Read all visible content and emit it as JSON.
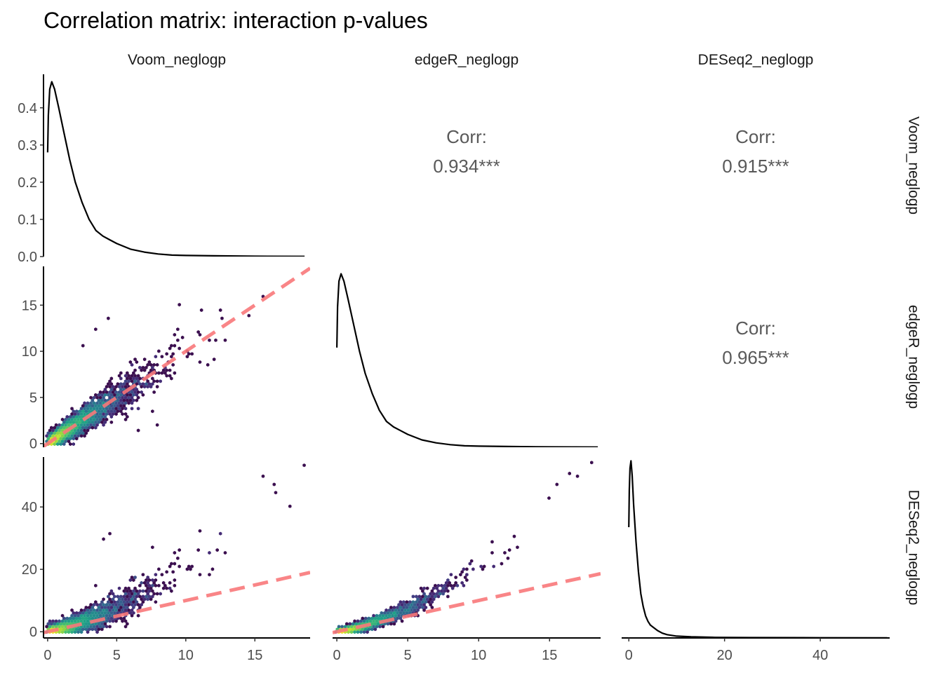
{
  "title": "Correlation matrix: interaction p-values",
  "variables": [
    "Voom_neglogp",
    "edgeR_neglogp",
    "DESeq2_neglogp"
  ],
  "colors": {
    "density_line": "#000000",
    "reference_line": "#f8787a",
    "hex_palette": [
      "#3b0f4f",
      "#46327e",
      "#365c8d",
      "#277f8e",
      "#1fa187",
      "#4ac16d",
      "#a0da39",
      "#fde725"
    ],
    "corr_text": "#595959",
    "axis": "#000000"
  },
  "chart_data": {
    "type": "scatter",
    "subtype": "pairs-matrix",
    "title": "Correlation matrix: interaction p-values",
    "grid": false,
    "panels": [
      {
        "row": 0,
        "col": 0,
        "kind": "density",
        "variable": "Voom_neglogp",
        "xlim": [
          -0.3,
          19
        ],
        "ylim": [
          0,
          0.49
        ],
        "y_ticks": [
          0.0,
          0.1,
          0.2,
          0.3,
          0.4
        ],
        "y_tick_labels": [
          "0.0",
          "0.1",
          "0.2",
          "0.3",
          "0.4"
        ],
        "curve": [
          [
            0.0,
            0.28
          ],
          [
            0.05,
            0.38
          ],
          [
            0.15,
            0.45
          ],
          [
            0.3,
            0.47
          ],
          [
            0.5,
            0.45
          ],
          [
            0.8,
            0.4
          ],
          [
            1.2,
            0.33
          ],
          [
            1.6,
            0.26
          ],
          [
            2.0,
            0.2
          ],
          [
            2.5,
            0.145
          ],
          [
            3.0,
            0.1
          ],
          [
            3.5,
            0.07
          ],
          [
            4.0,
            0.055
          ],
          [
            4.5,
            0.045
          ],
          [
            5.0,
            0.035
          ],
          [
            6.0,
            0.02
          ],
          [
            7.0,
            0.012
          ],
          [
            8.0,
            0.007
          ],
          [
            9.0,
            0.004
          ],
          [
            10.0,
            0.003
          ],
          [
            12.0,
            0.002
          ],
          [
            15.0,
            0.001
          ],
          [
            18.6,
            0.0005
          ]
        ]
      },
      {
        "row": 0,
        "col": 1,
        "kind": "corr",
        "label": "Corr:",
        "value": "0.934***"
      },
      {
        "row": 0,
        "col": 2,
        "kind": "corr",
        "label": "Corr:",
        "value": "0.915***"
      },
      {
        "row": 1,
        "col": 0,
        "kind": "hexbin",
        "x_var": "Voom_neglogp",
        "y_var": "edgeR_neglogp",
        "xlim": [
          -0.3,
          19
        ],
        "ylim": [
          -0.4,
          19.2
        ],
        "y_ticks": [
          0,
          5,
          10,
          15
        ],
        "y_tick_labels": [
          "0",
          "5",
          "10",
          "15"
        ],
        "reference_line": {
          "slope": 1,
          "intercept": 0
        },
        "relationship": {
          "type": "linear",
          "slope": 1.0,
          "exponent": 1.0,
          "spread": 0.9
        },
        "outliers": [
          [
            4.5,
            13.5
          ],
          [
            3.5,
            12.5
          ],
          [
            2.5,
            10.5
          ],
          [
            9.5,
            15.0
          ],
          [
            12.5,
            14.5
          ],
          [
            14.5,
            14.0
          ],
          [
            15.5,
            16.0
          ],
          [
            7.5,
            3.5
          ],
          [
            8.0,
            2.0
          ],
          [
            6.5,
            1.5
          ]
        ]
      },
      {
        "row": 1,
        "col": 1,
        "kind": "density",
        "variable": "edgeR_neglogp",
        "xlim": [
          -0.3,
          18.6
        ],
        "ylim": [
          0,
          0.49
        ],
        "curve": [
          [
            0.0,
            0.27
          ],
          [
            0.05,
            0.38
          ],
          [
            0.15,
            0.45
          ],
          [
            0.3,
            0.47
          ],
          [
            0.5,
            0.45
          ],
          [
            0.8,
            0.4
          ],
          [
            1.2,
            0.33
          ],
          [
            1.6,
            0.26
          ],
          [
            2.0,
            0.2
          ],
          [
            2.5,
            0.145
          ],
          [
            3.0,
            0.1
          ],
          [
            3.5,
            0.07
          ],
          [
            4.0,
            0.055
          ],
          [
            4.5,
            0.045
          ],
          [
            5.0,
            0.035
          ],
          [
            6.0,
            0.02
          ],
          [
            7.0,
            0.012
          ],
          [
            8.0,
            0.007
          ],
          [
            9.0,
            0.004
          ],
          [
            10.0,
            0.003
          ],
          [
            12.0,
            0.002
          ],
          [
            15.0,
            0.001
          ],
          [
            18.4,
            0.0005
          ]
        ]
      },
      {
        "row": 1,
        "col": 2,
        "kind": "corr",
        "label": "Corr:",
        "value": "0.965***"
      },
      {
        "row": 2,
        "col": 0,
        "kind": "hexbin",
        "x_var": "Voom_neglogp",
        "y_var": "DESeq2_neglogp",
        "xlim": [
          -0.3,
          19
        ],
        "ylim": [
          -2,
          56
        ],
        "x_ticks": [
          0,
          5,
          10,
          15
        ],
        "x_tick_labels": [
          "0",
          "5",
          "10",
          "15"
        ],
        "y_ticks": [
          0,
          20,
          40
        ],
        "y_tick_labels": [
          "0",
          "20",
          "40"
        ],
        "reference_line": {
          "slope": 1,
          "intercept": 0
        },
        "relationship": {
          "type": "power",
          "scale": 0.8,
          "exponent": 1.42,
          "spread": 2.2
        },
        "outliers": [
          [
            4.0,
            30.0
          ],
          [
            4.5,
            31.5
          ],
          [
            7.5,
            27.0
          ],
          [
            3.5,
            15.0
          ],
          [
            18.5,
            53.5
          ],
          [
            15.5,
            49.5
          ],
          [
            16.5,
            47.5
          ],
          [
            17.5,
            40.0
          ],
          [
            16.5,
            45.0
          ]
        ]
      },
      {
        "row": 2,
        "col": 1,
        "kind": "hexbin",
        "x_var": "edgeR_neglogp",
        "y_var": "DESeq2_neglogp",
        "xlim": [
          -0.3,
          18.6
        ],
        "ylim": [
          -2,
          56
        ],
        "x_ticks": [
          0,
          5,
          10,
          15
        ],
        "x_tick_labels": [
          "0",
          "5",
          "10",
          "15"
        ],
        "reference_line": {
          "slope": 1,
          "intercept": 0
        },
        "relationship": {
          "type": "power",
          "scale": 0.72,
          "exponent": 1.46,
          "spread": 1.2
        },
        "outliers": [
          [
            18.0,
            54.5
          ],
          [
            16.5,
            50.5
          ],
          [
            17.0,
            49.5
          ],
          [
            15.5,
            47.5
          ],
          [
            15.0,
            43.0
          ]
        ]
      },
      {
        "row": 2,
        "col": 2,
        "kind": "density",
        "variable": "DESeq2_neglogp",
        "xlim": [
          -1.5,
          54.5
        ],
        "ylim": [
          0,
          0.49
        ],
        "x_ticks": [
          0,
          20,
          40
        ],
        "x_tick_labels": [
          "0",
          "20",
          "40"
        ],
        "curve": [
          [
            0.0,
            0.3
          ],
          [
            0.1,
            0.4
          ],
          [
            0.25,
            0.46
          ],
          [
            0.45,
            0.48
          ],
          [
            0.7,
            0.44
          ],
          [
            1.0,
            0.36
          ],
          [
            1.5,
            0.26
          ],
          [
            2.0,
            0.18
          ],
          [
            2.5,
            0.12
          ],
          [
            3.0,
            0.085
          ],
          [
            3.5,
            0.06
          ],
          [
            4.0,
            0.045
          ],
          [
            4.5,
            0.035
          ],
          [
            5.0,
            0.03
          ],
          [
            6.0,
            0.02
          ],
          [
            7.0,
            0.013
          ],
          [
            8.0,
            0.009
          ],
          [
            10.0,
            0.005
          ],
          [
            13.0,
            0.003
          ],
          [
            18.0,
            0.0015
          ],
          [
            25.0,
            0.001
          ],
          [
            40.0,
            0.0005
          ],
          [
            54.0,
            0.0003
          ]
        ]
      }
    ]
  }
}
